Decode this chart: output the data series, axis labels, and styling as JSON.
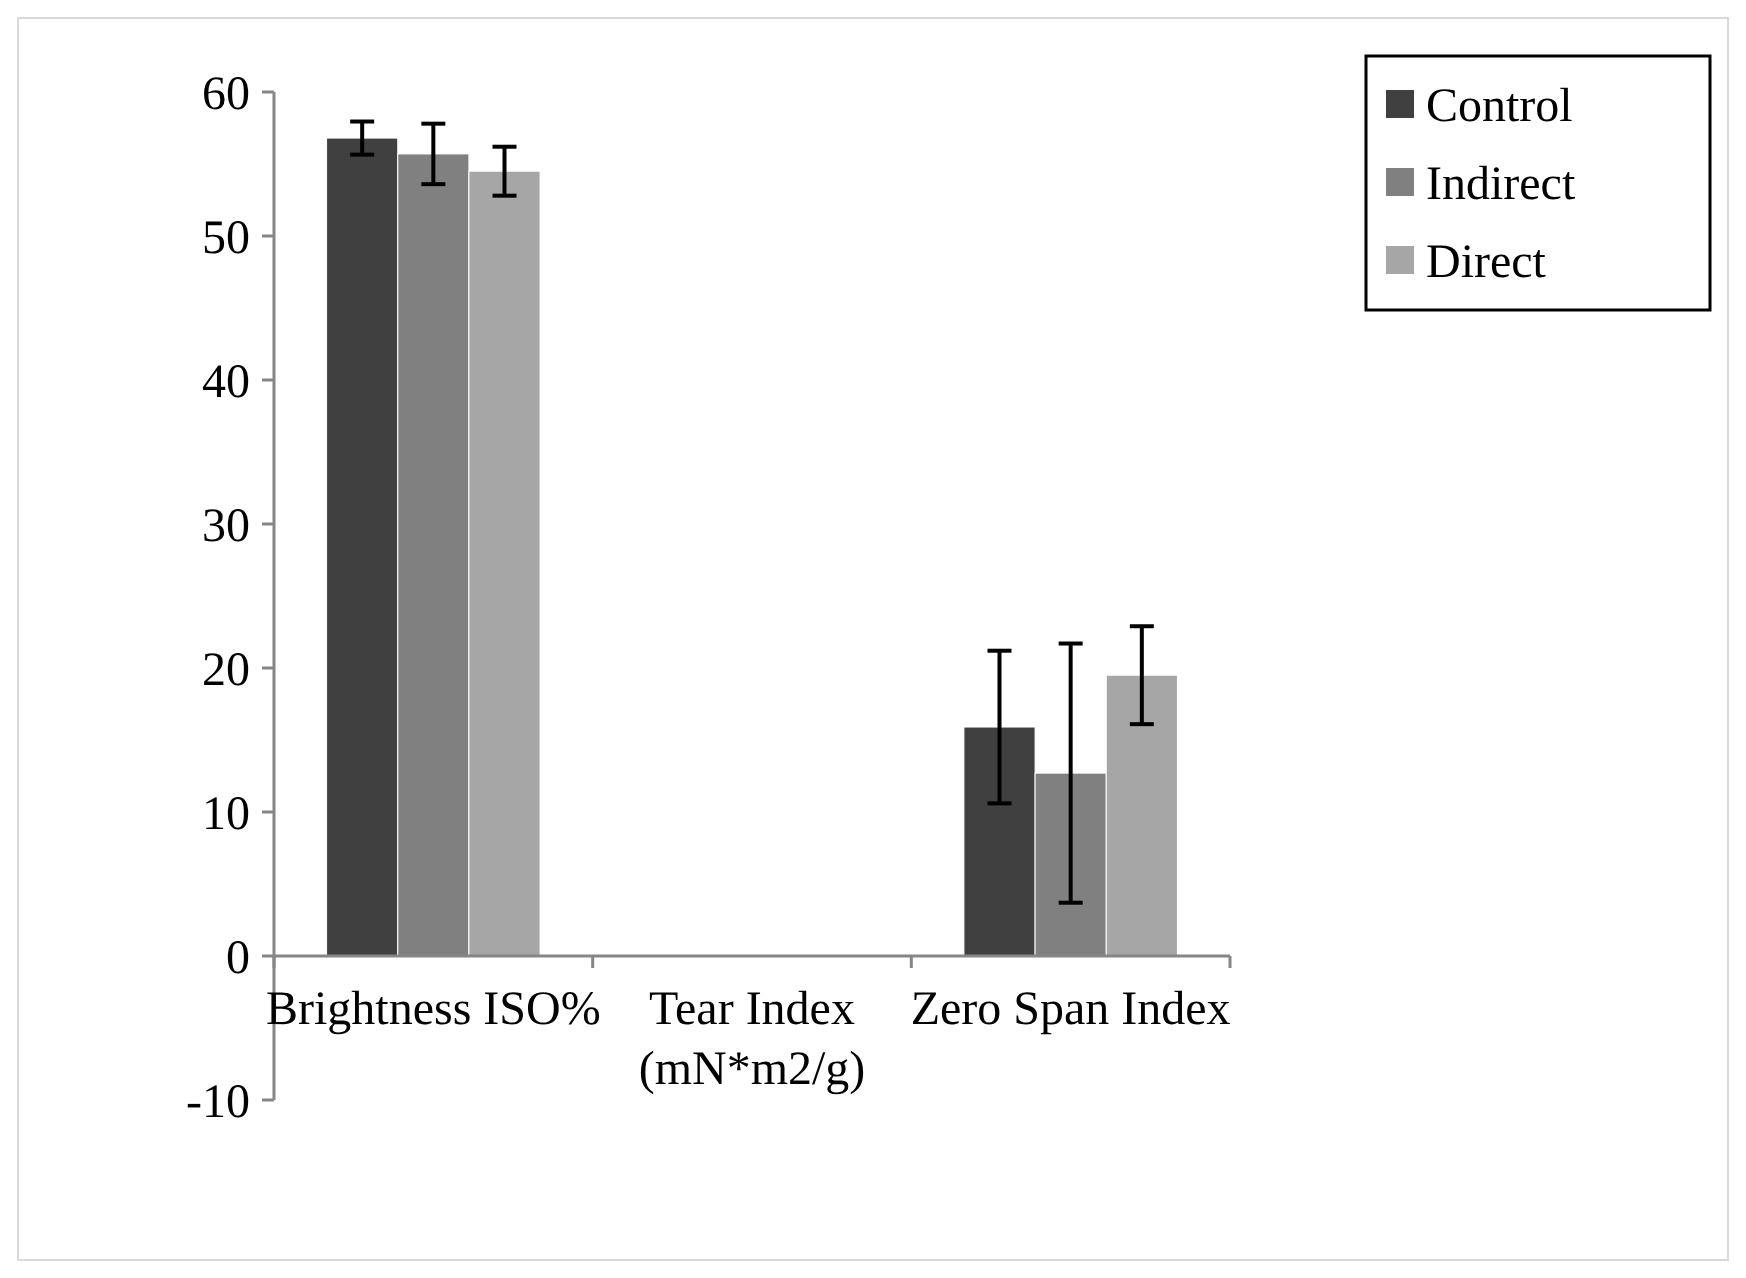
{
  "chart_data": {
    "type": "bar",
    "categories": [
      "Brightness ISO%",
      "Tear Index\n(mN*m2/g)",
      "Zero Span Index"
    ],
    "series": [
      {
        "name": "Control",
        "color": "#404040",
        "values": [
          56.8,
          0,
          15.9
        ],
        "errors": [
          1.15,
          null,
          5.3
        ]
      },
      {
        "name": "Indirect",
        "color": "#808080",
        "values": [
          55.7,
          0,
          12.7
        ],
        "errors": [
          2.1,
          null,
          9.0
        ]
      },
      {
        "name": "Direct",
        "color": "#a6a6a6",
        "values": [
          54.5,
          0,
          19.5
        ],
        "errors": [
          1.7,
          null,
          3.4
        ]
      }
    ],
    "ylim": [
      -10,
      60
    ],
    "yticks": [
      -10,
      0,
      10,
      20,
      30,
      40,
      50,
      60
    ],
    "grid": false,
    "legend": "top right"
  }
}
